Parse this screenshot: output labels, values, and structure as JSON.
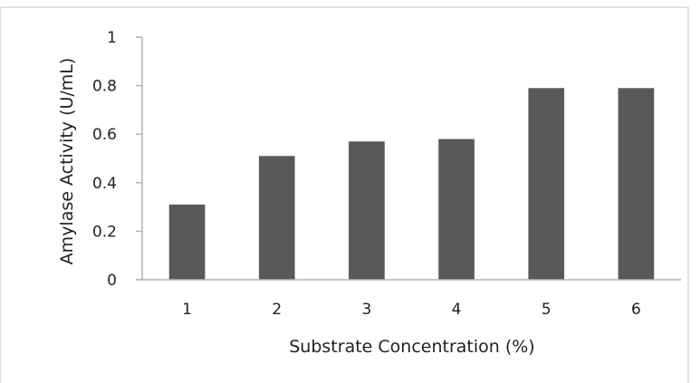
{
  "chart_data": {
    "type": "bar",
    "title": "",
    "xlabel": "Substrate Concentration (%)",
    "ylabel": "Amylase Activity (U/mL)",
    "categories": [
      "1",
      "2",
      "3",
      "4",
      "5",
      "6"
    ],
    "values": [
      0.31,
      0.51,
      0.57,
      0.58,
      0.79,
      0.79
    ],
    "ylim": [
      0,
      1
    ],
    "yticks": [
      "0",
      "0.2",
      "0.4",
      "0.6",
      "0.8",
      "1"
    ],
    "grid": false,
    "legend": "none",
    "colors": {
      "bar": "#595959",
      "axis": "#b3b3b3",
      "border": "#d9d9d9"
    }
  }
}
